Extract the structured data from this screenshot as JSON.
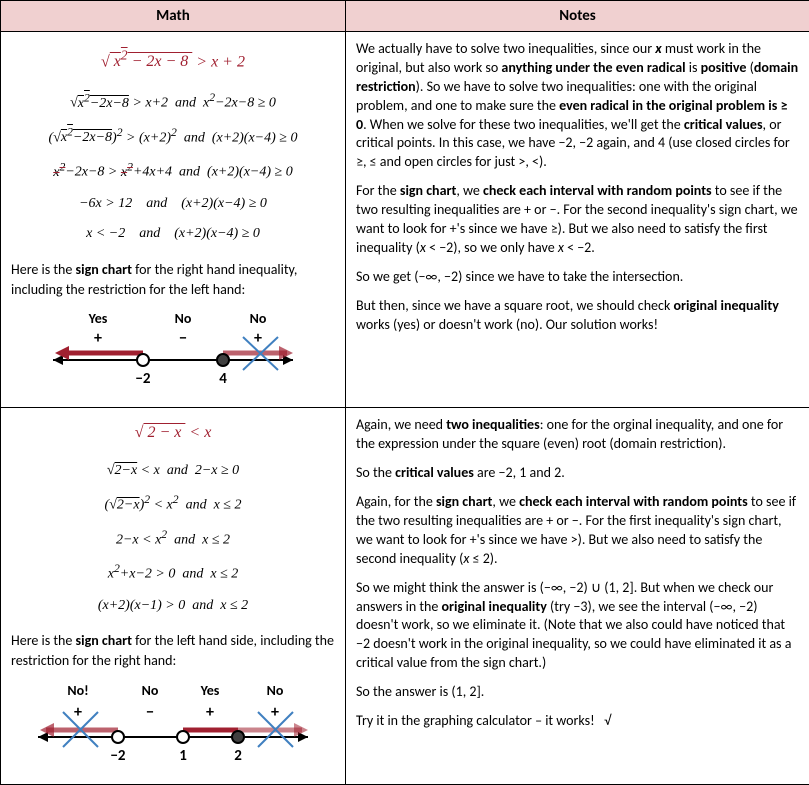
{
  "headers": {
    "math": "Math",
    "notes": "Notes"
  },
  "row1": {
    "problem_html": "&radic;<span style='text-decoration:overline'>&nbsp;x<sup>2</sup> &minus; 2x &minus; 8&nbsp;</span> &gt; x + 2",
    "work_lines_html": [
      "&radic;<span style='text-decoration:overline'>x<sup>2</sup>&minus;2x&minus;8</span> &gt; x+2 &nbsp;and&nbsp; x<sup>2</sup>&minus;2x&minus;8 &ge; 0",
      "(&radic;<span style='text-decoration:overline'>x<sup>2</sup>&minus;2x&minus;8</span>)<sup>2</sup> &gt; (x+2)<sup>2</sup> &nbsp;and&nbsp; (x+2)(x&minus;4) &ge; 0",
      "<span class='strike'>x<sup>2</sup></span>&minus;2x&minus;8 &gt; <span class='strike'>x<sup>2</sup></span>+4x+4 &nbsp;and&nbsp; (x+2)(x&minus;4) &ge; 0",
      "&minus;6x &gt; 12 &nbsp;&nbsp;&nbsp;and&nbsp;&nbsp;&nbsp; (x+2)(x&minus;4) &ge; 0",
      "x &lt; &minus;2 &nbsp;&nbsp;&nbsp;and&nbsp;&nbsp;&nbsp; (x+2)(x&minus;4) &ge; 0"
    ],
    "caption_html": "Here is the <b>sign chart</b> for the right hand inequality, including the restriction for the left hand:",
    "chart": {
      "labels": {
        "yes": "Yes",
        "no1": "No",
        "no2": "No"
      },
      "signs": {
        "s1": "+",
        "s2": "−",
        "s3": "+"
      },
      "ticks": {
        "t1": "−2",
        "t2": "4"
      },
      "colors": {
        "arrow": "#a02030",
        "open": "#fff",
        "closed": "#404040",
        "x": "#4080c0",
        "line": "#000"
      }
    },
    "notes_html": [
      "We actually have to solve two inequalities, since our <b><i>x</i></b> must work in the original, but also work so <b>anything under the even radical</b> is <b>positive</b> (<b>domain restriction</b>). So we have to solve two inequalities: one with the original problem, and one to make sure the <b>even radical in the original problem is &ge; 0</b>. When we solve for these two inequalities, we'll get the <b>critical values</b>, or critical points. In this case, we have &minus;2, &minus;2 again, and 4 (use closed circles for &ge;, &le; and open circles for just &gt;, &lt;).",
      "For the <b>sign chart</b>, we <b>check each interval with random points</b> to see if the two resulting inequalities are + or &minus;. For the second inequality's sign chart, we want to look for +'s since we have &ge;). But we also need to satisfy the first inequality (<i>x</i> &lt; &minus;2), so we only have <i>x</i> &lt; &minus;2.",
      "So we get (&minus;&infin;, &minus;2) since we have to take the intersection.",
      "But then, since we have a square root, we should check <b>original inequality</b> works (yes) or doesn't work (no). Our solution works!"
    ]
  },
  "row2": {
    "problem_html": "&radic;<span style='text-decoration:overline'>&nbsp;2 &minus; x&nbsp;</span> &lt; x",
    "work_lines_html": [
      "&radic;<span style='text-decoration:overline'>2&minus;x</span> &lt; x &nbsp;and&nbsp; 2&minus;x &ge; 0",
      "(&radic;<span style='text-decoration:overline'>2&minus;x</span>)<sup>2</sup> &lt; x<sup>2</sup> &nbsp;and&nbsp; x &le; 2",
      "2&minus;x &lt; x<sup>2</sup> &nbsp;and&nbsp; x &le; 2",
      "x<sup>2</sup>+x&minus;2 &gt; 0 &nbsp;and&nbsp; x &le; 2",
      "(x+2)(x&minus;1) &gt; 0 &nbsp;and&nbsp; x &le; 2"
    ],
    "caption_html": "Here is the <b>sign chart</b> for the left hand side, including the restriction for the right hand:",
    "chart": {
      "labels": {
        "no1": "No!",
        "no2": "No",
        "yes": "Yes",
        "no3": "No"
      },
      "signs": {
        "s1": "+",
        "s2": "−",
        "s3": "+",
        "s4": "+"
      },
      "ticks": {
        "t1": "−2",
        "t2": "1",
        "t3": "2"
      },
      "colors": {
        "arrow": "#a02030",
        "open": "#fff",
        "closed": "#404040",
        "x": "#4080c0",
        "line": "#000"
      }
    },
    "notes_html": [
      "Again, we need <b>two inequalities</b>: one for the orginal inequality, and one for the expression under the square (even) root (domain restriction).",
      "So the <b>critical values</b> are &minus;2, 1 and 2.",
      "Again, for the <b>sign chart</b>, we <b>check each interval with random points</b> to see if the two resulting inequalities are + or &minus;. For the first inequality's sign chart, we want to look for +'s since we have &gt;). But we also need to satisfy the second inequality (<i>x</i> &le; 2).",
      "So we might think the answer is (&minus;&infin;, &minus;2) &cup; (1, 2]. But when we check our answers in the <b>original inequality</b> (try &minus;3), we see the interval (&minus;&infin;, &minus;2) doesn't work, so we eliminate it. (Note that we also could have noticed that &minus;2 doesn't work in the original inequality, so we could have eliminated it as a critical value from the sign chart.)",
      "So the answer is (1, 2].",
      "Try it in the graphing calculator &ndash; it works! &nbsp;&nbsp;&radic;"
    ]
  }
}
